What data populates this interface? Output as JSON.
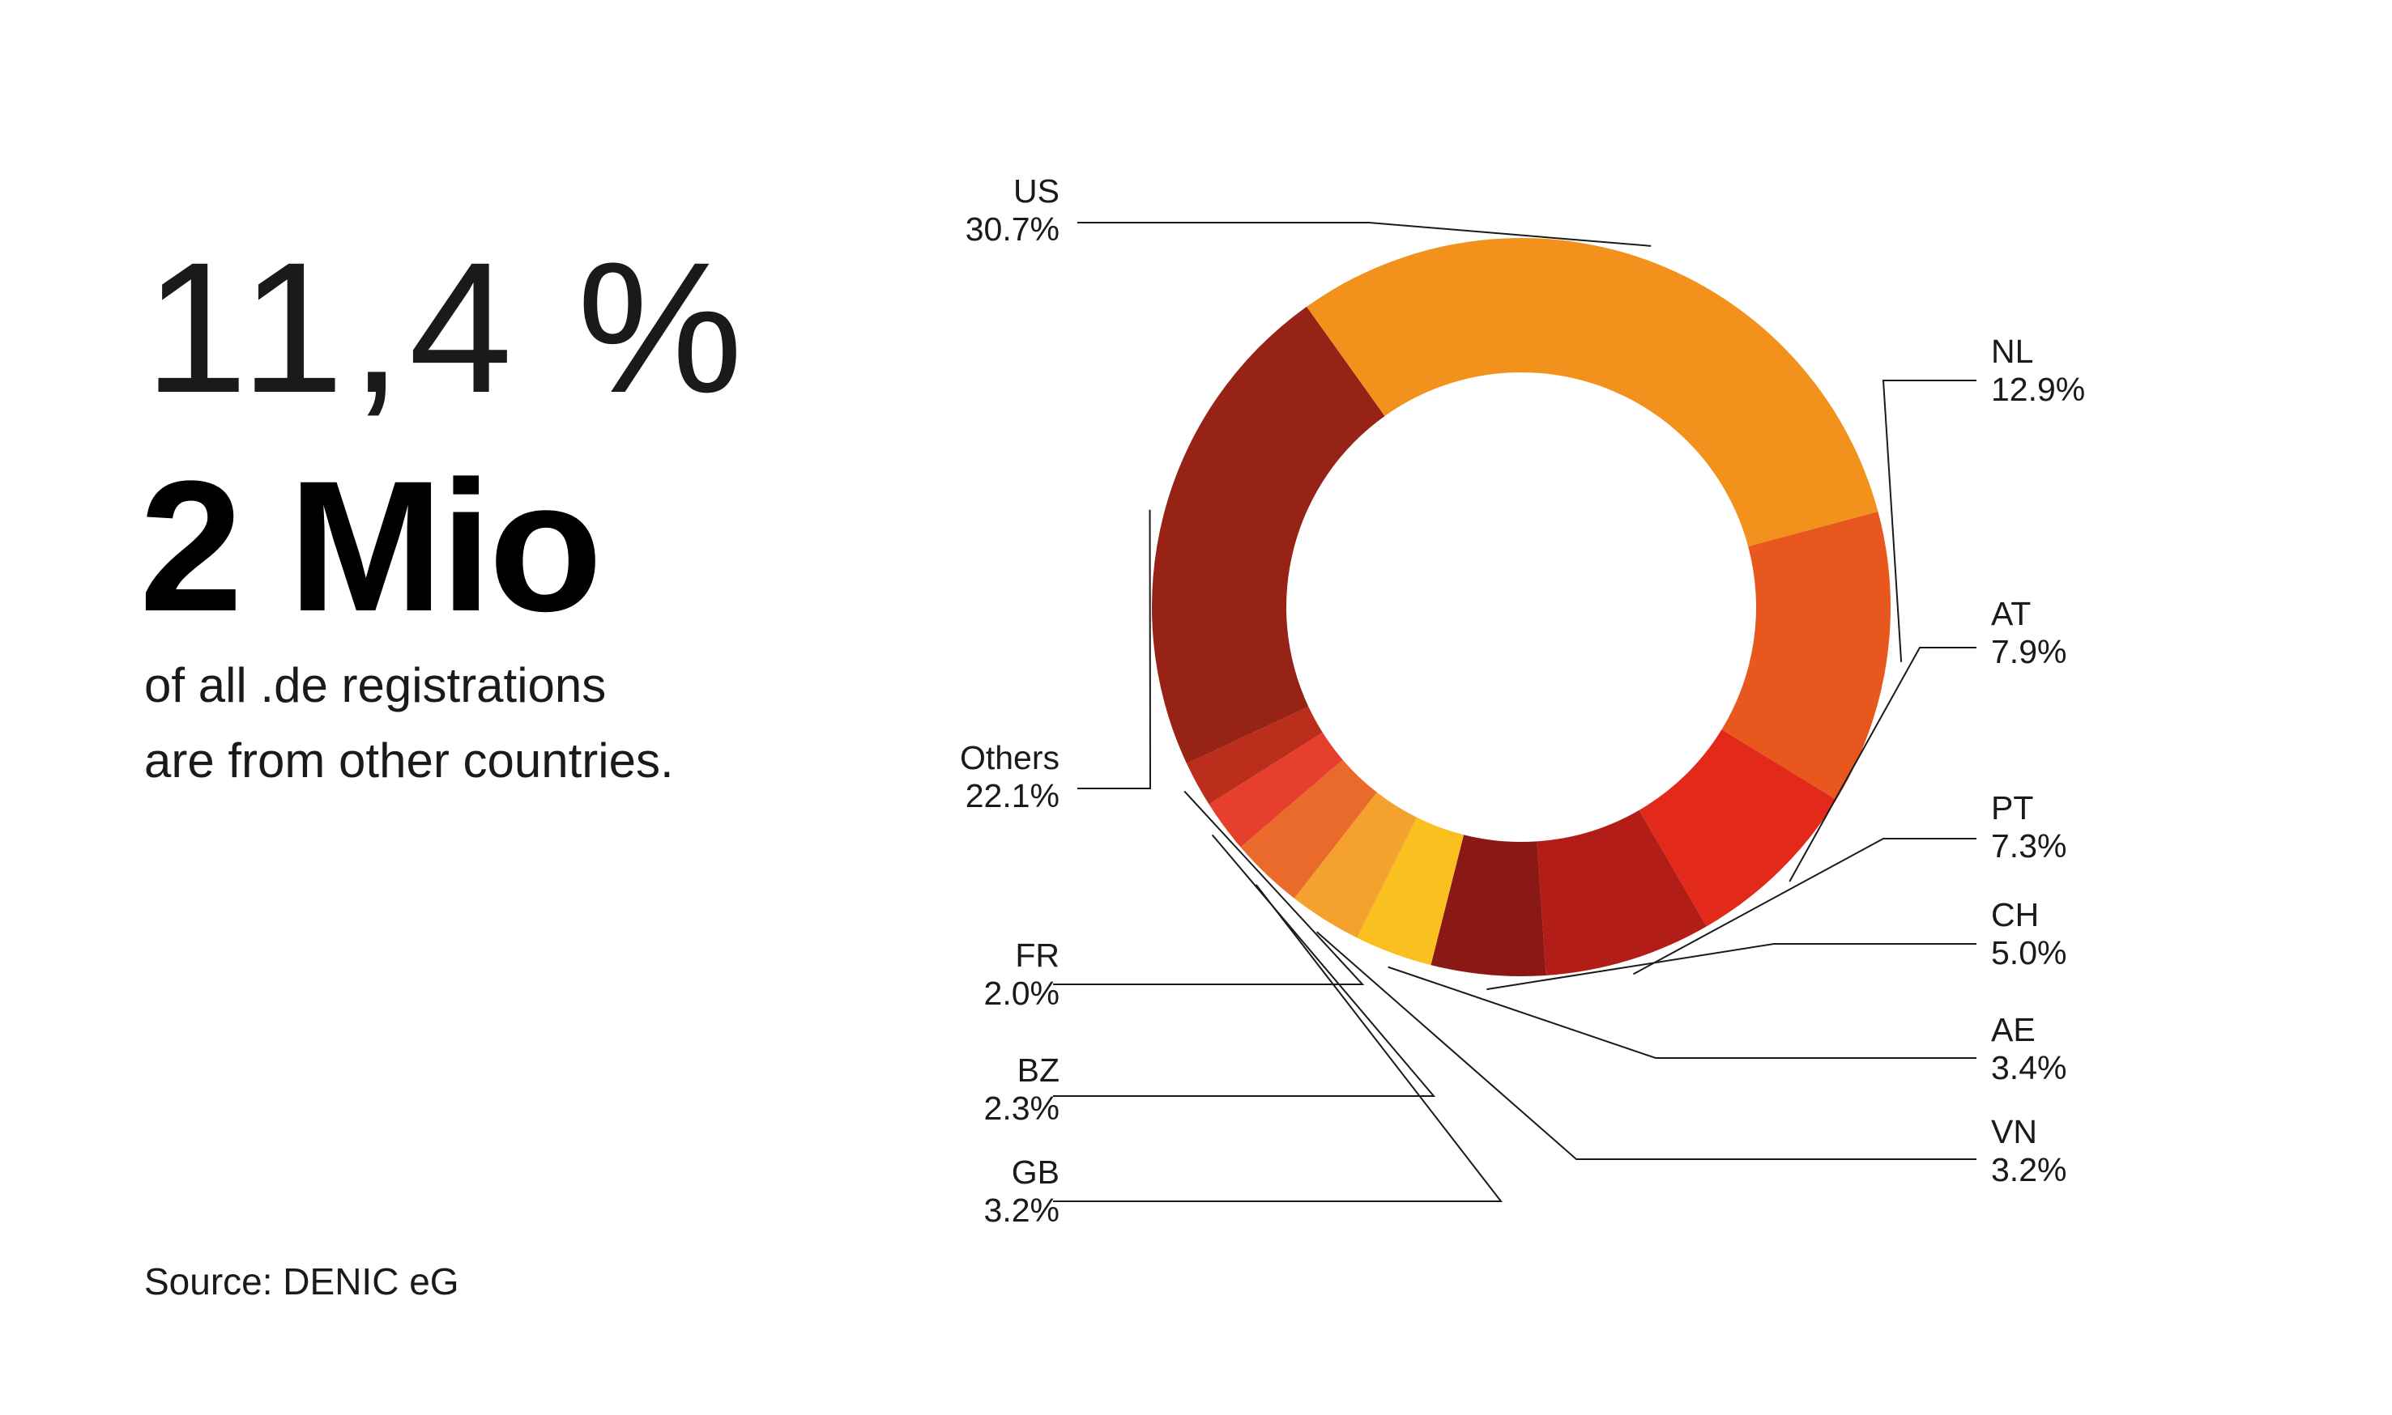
{
  "stat": {
    "percent": "11,4 %",
    "headline": "2 Mio",
    "subtitle_line1": "of all .de registrations",
    "subtitle_line2": "are from other countries.",
    "source": "Source: DENIC eG"
  },
  "chart_data": {
    "type": "donut",
    "unit": "%",
    "start_angle_deg": 75,
    "direction": "clockwise",
    "slices": [
      {
        "label": "NL",
        "value": 12.9,
        "display": "12.9%",
        "color": "#E8571E"
      },
      {
        "label": "AT",
        "value": 7.9,
        "display": "7.9%",
        "color": "#E3291A"
      },
      {
        "label": "PT",
        "value": 7.3,
        "display": "7.3%",
        "color": "#B31D18"
      },
      {
        "label": "CH",
        "value": 5.0,
        "display": "5.0%",
        "color": "#8A1815"
      },
      {
        "label": "AE",
        "value": 3.4,
        "display": "3.4%",
        "color": "#F9C020"
      },
      {
        "label": "VN",
        "value": 3.2,
        "display": "3.2%",
        "color": "#F5A12E"
      },
      {
        "label": "GB",
        "value": 3.2,
        "display": "3.2%",
        "color": "#EA6A2C"
      },
      {
        "label": "BZ",
        "value": 2.3,
        "display": "2.3%",
        "color": "#E73F2D"
      },
      {
        "label": "FR",
        "value": 2.0,
        "display": "2.0%",
        "color": "#BC2E1C"
      },
      {
        "label": "Others",
        "value": 22.1,
        "display": "22.1%",
        "color": "#972216"
      },
      {
        "label": "US",
        "value": 30.7,
        "display": "30.7%",
        "color": "#F2921D"
      }
    ]
  }
}
